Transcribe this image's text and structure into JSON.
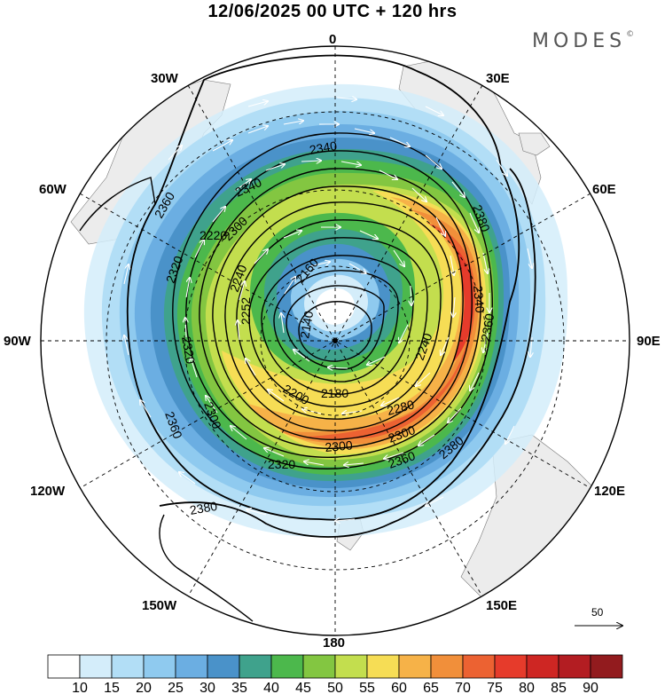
{
  "title": "12/06/2025  00 UTC  + 120 hrs",
  "brand": "MODES",
  "brand_mark": "©",
  "longitude_labels": {
    "0": "0",
    "30E": "30E",
    "60E": "60E",
    "90E": "90E",
    "120E": "120E",
    "150E": "150E",
    "180": "180",
    "150W": "150W",
    "120W": "120W",
    "90W": "90W",
    "60W": "60W",
    "30W": "30W"
  },
  "contour_labels": [
    "2340",
    "2340",
    "2360",
    "2300",
    "2220",
    "2320",
    "2240",
    "2160",
    "2320",
    "2252",
    "2140",
    "2300",
    "2200",
    "2180",
    "2360",
    "2300",
    "2320",
    "2300",
    "2280",
    "2240",
    "2340",
    "2380",
    "2360",
    "2380",
    "2360",
    "2380"
  ],
  "wind_scale": {
    "label": "50"
  },
  "colorbar": {
    "colors": [
      "#ffffff",
      "#d4edfa",
      "#b2def6",
      "#8fcaef",
      "#6baee2",
      "#4a92c9",
      "#3fa28c",
      "#4cb84c",
      "#83c641",
      "#c3de4e",
      "#f6dd55",
      "#f6b248",
      "#f18f3a",
      "#ec6232",
      "#e63b2b",
      "#ce2623",
      "#b31d22",
      "#921b1e"
    ],
    "labels": [
      "10",
      "15",
      "20",
      "25",
      "30",
      "35",
      "40",
      "45",
      "50",
      "55",
      "60",
      "65",
      "70",
      "75",
      "80",
      "85",
      "90"
    ]
  },
  "colors": {
    "background": "#ffffff",
    "land": "#ececec",
    "grid": "#000000"
  }
}
